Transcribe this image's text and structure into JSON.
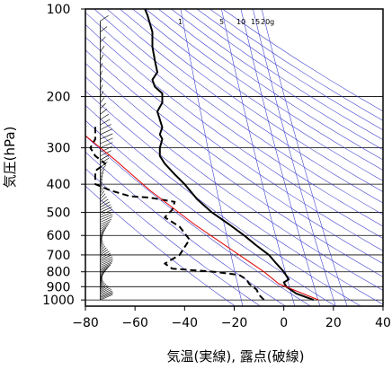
{
  "chart_data": {
    "type": "line",
    "title": "",
    "xlabel": "気温(実線), 露点(破線)",
    "ylabel": "気圧(hPa)",
    "xlim": [
      -80,
      40
    ],
    "ylim": [
      1050,
      100
    ],
    "y_scale": "log",
    "x_ticks": [
      -80,
      -60,
      -40,
      -20,
      0,
      20,
      40
    ],
    "x_tick_labels": [
      "−80",
      "−60",
      "−40",
      "−20",
      "0",
      "20",
      "40"
    ],
    "y_ticks": [
      100,
      200,
      300,
      400,
      500,
      600,
      700,
      800,
      900,
      1000
    ],
    "y_tick_labels": [
      "100",
      "200",
      "300",
      "400",
      "500",
      "600",
      "700",
      "800",
      "900",
      "1000"
    ],
    "grid": true,
    "mixing_ratio_labels": [
      "1",
      "5",
      "10",
      "15",
      "20g"
    ],
    "colors": {
      "temperature": "#000000",
      "dewpoint": "#000000",
      "parcel": "#e00000",
      "isotherm_adiabat": "#3333cc",
      "grid": "#000000"
    },
    "series": [
      {
        "key": "temperature",
        "style": "solid",
        "points": [
          [
            12,
            1000
          ],
          [
            5,
            950
          ],
          [
            1,
            900
          ],
          [
            0,
            870
          ],
          [
            2,
            850
          ],
          [
            0,
            800
          ],
          [
            -3,
            750
          ],
          [
            -6,
            700
          ],
          [
            -11,
            650
          ],
          [
            -16,
            600
          ],
          [
            -22,
            550
          ],
          [
            -29,
            500
          ],
          [
            -35,
            450
          ],
          [
            -40,
            400
          ],
          [
            -44,
            370
          ],
          [
            -48,
            340
          ],
          [
            -50,
            320
          ],
          [
            -50,
            300
          ],
          [
            -49,
            280
          ],
          [
            -50,
            270
          ],
          [
            -49,
            255
          ],
          [
            -50,
            240
          ],
          [
            -51,
            225
          ],
          [
            -49,
            210
          ],
          [
            -49,
            195
          ],
          [
            -52,
            185
          ],
          [
            -53,
            175
          ],
          [
            -51,
            165
          ],
          [
            -52,
            150
          ],
          [
            -53,
            135
          ],
          [
            -53,
            120
          ],
          [
            -55,
            105
          ],
          [
            -56,
            100
          ]
        ]
      },
      {
        "key": "dewpoint",
        "style": "dashed",
        "points": [
          [
            -8,
            1000
          ],
          [
            -10,
            960
          ],
          [
            -11,
            920
          ],
          [
            -14,
            880
          ],
          [
            -15,
            850
          ],
          [
            -18,
            820
          ],
          [
            -28,
            800
          ],
          [
            -45,
            780
          ],
          [
            -48,
            750
          ],
          [
            -42,
            700
          ],
          [
            -38,
            620
          ],
          [
            -42,
            560
          ],
          [
            -48,
            520
          ],
          [
            -45,
            490
          ],
          [
            -44,
            460
          ],
          [
            -54,
            445
          ],
          [
            -62,
            440
          ],
          [
            -70,
            420
          ],
          [
            -76,
            400
          ],
          [
            -76,
            360
          ],
          [
            -72,
            340
          ],
          [
            -76,
            320
          ],
          [
            -78,
            300
          ],
          [
            -76,
            280
          ],
          [
            -76,
            250
          ]
        ]
      },
      {
        "key": "parcel",
        "style": "solid",
        "points": [
          [
            14,
            1000
          ],
          [
            -2,
            880
          ],
          [
            -8,
            800
          ],
          [
            -18,
            700
          ],
          [
            -36,
            550
          ],
          [
            -54,
            420
          ],
          [
            -68,
            330
          ],
          [
            -88,
            240
          ]
        ]
      }
    ]
  }
}
